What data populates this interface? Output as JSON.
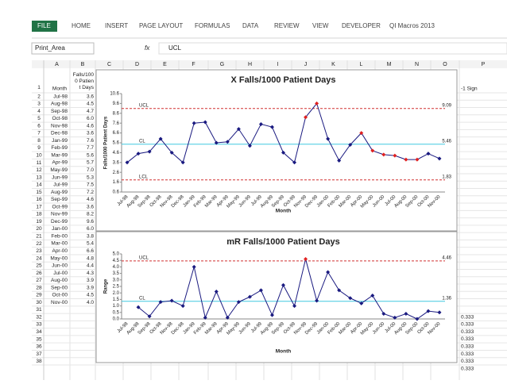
{
  "ribbon": {
    "tabs": [
      "FILE",
      "HOME",
      "INSERT",
      "PAGE LAYOUT",
      "FORMULAS",
      "DATA",
      "REVIEW",
      "VIEW",
      "DEVELOPER",
      "QI Macros 2013"
    ]
  },
  "name_box": "Print_Area",
  "formula": "UCL",
  "fx": "fx",
  "columns": [
    "A",
    "B",
    "C",
    "D",
    "E",
    "F",
    "G",
    "H",
    "I",
    "J",
    "K",
    "L",
    "M",
    "N",
    "O",
    "P"
  ],
  "row_numbers": [
    1,
    2,
    3,
    4,
    5,
    6,
    7,
    8,
    9,
    10,
    11,
    12,
    13,
    14,
    15,
    16,
    17,
    18,
    19,
    20,
    21,
    22,
    23,
    24,
    25,
    26,
    27,
    28,
    29,
    30,
    31,
    32,
    33,
    34,
    35,
    36,
    37,
    38
  ],
  "header": {
    "A": "Month",
    "B": "Falls/1000 Patient Days",
    "P": "-1 Sign"
  },
  "table": {
    "months": [
      "Jul-98",
      "Aug-98",
      "Sep-98",
      "Oct-98",
      "Nov-98",
      "Dec-98",
      "Jan-99",
      "Feb-99",
      "Mar-99",
      "Apr-99",
      "May-99",
      "Jun-99",
      "Jul-99",
      "Aug-99",
      "Sep-99",
      "Oct-99",
      "Nov-99",
      "Dec-99",
      "Jan-00",
      "Feb-00",
      "Mar-00",
      "Apr-00",
      "May-00",
      "Jun-00",
      "Jul-00",
      "Aug-00",
      "Sep-00",
      "Oct-00",
      "Nov-00"
    ],
    "falls": [
      "3.6",
      "4.5",
      "4.7",
      "6.0",
      "4.6",
      "3.6",
      "7.6",
      "7.7",
      "5.6",
      "5.7",
      "7.0",
      "5.3",
      "7.5",
      "7.2",
      "4.6",
      "3.6",
      "8.2",
      "9.6",
      "6.0",
      "3.8",
      "5.4",
      "6.6",
      "4.8",
      "4.4",
      "4.3",
      "3.9",
      "3.9",
      "4.5",
      "4.0"
    ],
    "p_column": [
      "0.333",
      "0.333",
      "0.333",
      "0.333",
      "0.333",
      "0.333",
      "0.333",
      "0.333"
    ]
  },
  "chart_data": [
    {
      "type": "line",
      "title": "X Falls/1000 Patient Days",
      "x_label": "Month",
      "y_label": "Falls/1000 Patient Days",
      "categories": [
        "Jul-98",
        "Aug-98",
        "Sep-98",
        "Oct-98",
        "Nov-98",
        "Dec-98",
        "Jan-99",
        "Feb-99",
        "Mar-99",
        "Apr-99",
        "May-99",
        "Jun-99",
        "Jul-99",
        "Aug-99",
        "Sep-99",
        "Oct-99",
        "Nov-99",
        "Dec-99",
        "Jan-00",
        "Feb-00",
        "Mar-00",
        "Apr-00",
        "May-00",
        "Jun-00",
        "Jul-00",
        "Aug-00",
        "Sep-00",
        "Oct-00",
        "Nov-00"
      ],
      "series": [
        {
          "name": "X",
          "color": "#1a1a80",
          "values": [
            3.6,
            4.5,
            4.7,
            6.0,
            4.6,
            3.6,
            7.6,
            7.7,
            5.6,
            5.7,
            7.0,
            5.3,
            7.5,
            7.2,
            4.6,
            3.6,
            8.2,
            9.6,
            6.0,
            3.8,
            5.4,
            6.6,
            4.8,
            4.4,
            4.3,
            3.9,
            3.9,
            4.5,
            4.0
          ],
          "point_colors": [
            "#1a1a80",
            "#1a1a80",
            "#1a1a80",
            "#1a1a80",
            "#1a1a80",
            "#1a1a80",
            "#1a1a80",
            "#1a1a80",
            "#1a1a80",
            "#1a1a80",
            "#1a1a80",
            "#1a1a80",
            "#1a1a80",
            "#1a1a80",
            "#1a1a80",
            "#1a1a80",
            "#e02020",
            "#e02020",
            "#1a1a80",
            "#1a1a80",
            "#1a1a80",
            "#e02020",
            "#e02020",
            "#e02020",
            "#e02020",
            "#e02020",
            "#e02020",
            "#1a1a80",
            "#1a1a80"
          ]
        }
      ],
      "limits": [
        {
          "name": "UCL",
          "value": 9.09,
          "color": "#d03030",
          "dashed": true
        },
        {
          "name": "CL",
          "value": 5.46,
          "color": "#40c8e0",
          "dashed": false
        },
        {
          "name": "LCL",
          "value": 1.83,
          "color": "#d03030",
          "dashed": true
        }
      ],
      "ylim": [
        0.6,
        10.6
      ],
      "yticks": [
        0.6,
        1.6,
        2.6,
        3.6,
        4.6,
        5.6,
        6.6,
        7.6,
        8.6,
        9.6,
        10.6
      ]
    },
    {
      "type": "line",
      "title": "mR Falls/1000 Patient Days",
      "x_label": "Month",
      "y_label": "Range",
      "categories": [
        "Jul-98",
        "Aug-98",
        "Sep-98",
        "Oct-98",
        "Nov-98",
        "Dec-98",
        "Jan-99",
        "Feb-99",
        "Mar-99",
        "Apr-99",
        "May-99",
        "Jun-99",
        "Jul-99",
        "Aug-99",
        "Sep-99",
        "Oct-99",
        "Nov-99",
        "Dec-99",
        "Jan-00",
        "Feb-00",
        "Mar-00",
        "Apr-00",
        "May-00",
        "Jun-00",
        "Jul-00",
        "Aug-00",
        "Sep-00",
        "Oct-00",
        "Nov-00"
      ],
      "series": [
        {
          "name": "mR",
          "color": "#1a1a80",
          "values": [
            null,
            0.9,
            0.2,
            1.3,
            1.4,
            1.0,
            4.0,
            0.1,
            2.1,
            0.1,
            1.3,
            1.7,
            2.2,
            0.3,
            2.6,
            1.0,
            4.6,
            1.4,
            3.6,
            2.2,
            1.6,
            1.2,
            1.8,
            0.4,
            0.1,
            0.4,
            0.0,
            0.6,
            0.5
          ],
          "point_colors": [
            null,
            "#1a1a80",
            "#1a1a80",
            "#1a1a80",
            "#1a1a80",
            "#1a1a80",
            "#1a1a80",
            "#1a1a80",
            "#1a1a80",
            "#1a1a80",
            "#1a1a80",
            "#1a1a80",
            "#1a1a80",
            "#1a1a80",
            "#1a1a80",
            "#1a1a80",
            "#e02020",
            "#1a1a80",
            "#1a1a80",
            "#1a1a80",
            "#1a1a80",
            "#1a1a80",
            "#1a1a80",
            "#1a1a80",
            "#1a1a80",
            "#1a1a80",
            "#1a1a80",
            "#1a1a80",
            "#1a1a80"
          ]
        }
      ],
      "limits": [
        {
          "name": "UCL",
          "value": 4.46,
          "color": "#d03030",
          "dashed": true
        },
        {
          "name": "CL",
          "value": 1.36,
          "color": "#40c8e0",
          "dashed": false
        }
      ],
      "ylim": [
        0,
        5
      ],
      "yticks": [
        {
          "value": 0,
          "label": "0.0"
        },
        {
          "value": 0.5,
          "label": "0.5"
        },
        {
          "value": 1,
          "label": "1.0"
        },
        {
          "value": 1.5,
          "label": "1.5"
        },
        {
          "value": 2,
          "label": "2.0"
        },
        {
          "value": 2.5,
          "label": "2.5"
        },
        {
          "value": 3,
          "label": "3.0"
        },
        {
          "value": 3.5,
          "label": "3.5"
        },
        {
          "value": 4,
          "label": "4.0"
        },
        {
          "value": 4.5,
          "label": "4.5"
        },
        {
          "value": 5,
          "label": "5.0"
        }
      ]
    }
  ]
}
